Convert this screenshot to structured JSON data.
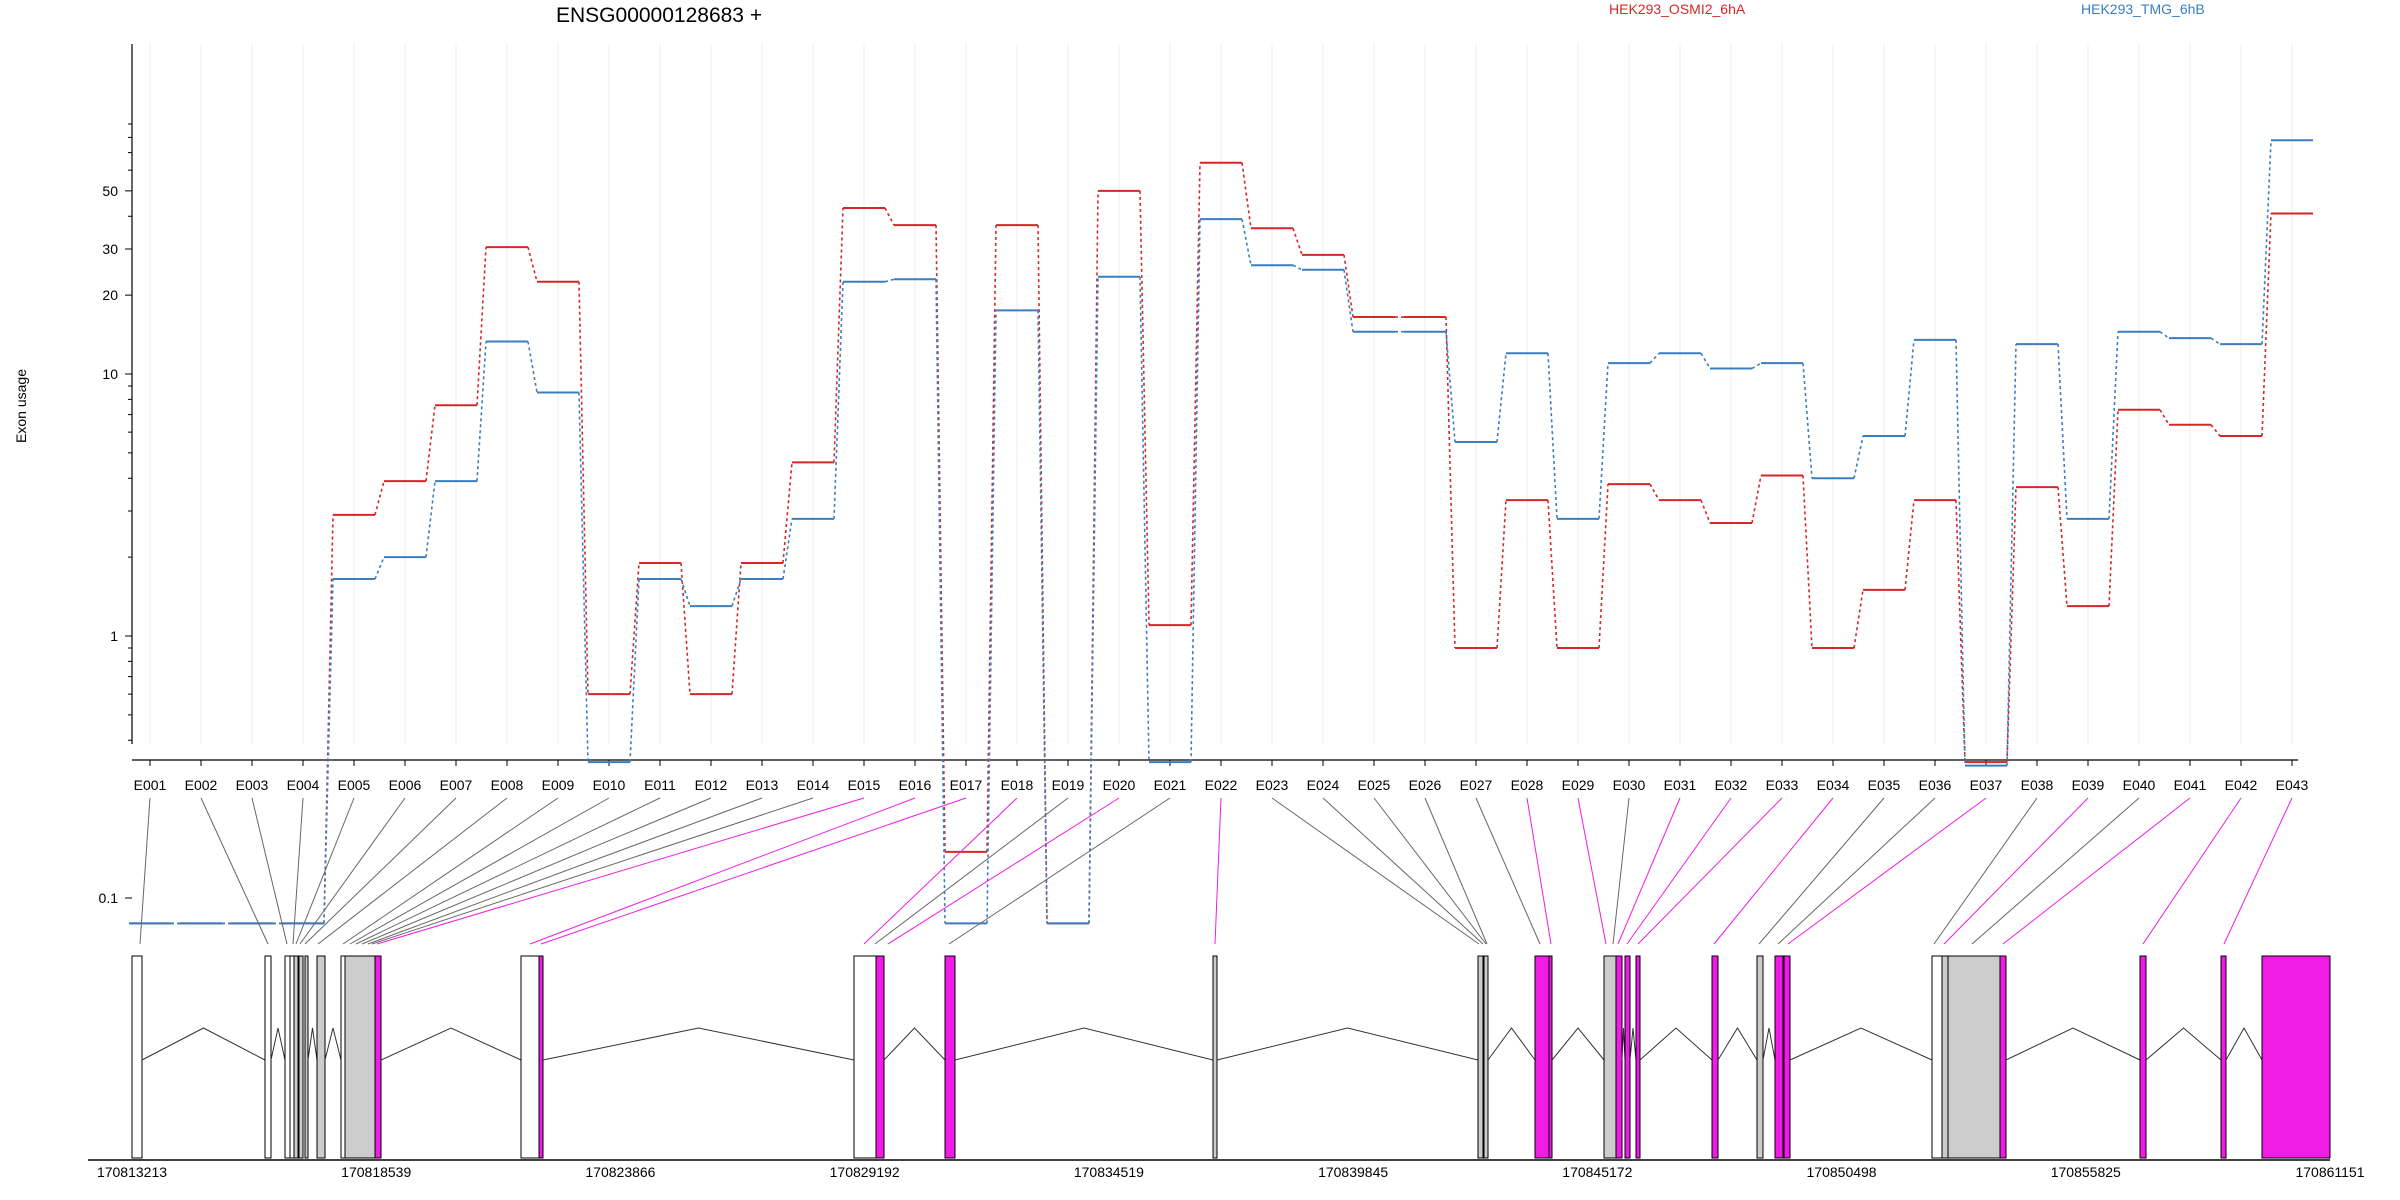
{
  "chart_data": {
    "type": "line",
    "title": "ENSG00000128683 +",
    "ylabel": "Exon usage",
    "y_scale": "log",
    "ylim": [
      0.08,
      100
    ],
    "yticks": [
      0.1,
      1,
      10,
      20,
      30,
      50
    ],
    "ytick_labels": [
      "0.1",
      "1",
      "10",
      "20",
      "30",
      "50"
    ],
    "grid": "vertical",
    "legend_position": "top",
    "categories": [
      "E001",
      "E002",
      "E003",
      "E004",
      "E005",
      "E006",
      "E007",
      "E008",
      "E009",
      "E010",
      "E011",
      "E012",
      "E013",
      "E014",
      "E015",
      "E016",
      "E017",
      "E018",
      "E019",
      "E020",
      "E021",
      "E022",
      "E023",
      "E024",
      "E025",
      "E026",
      "E027",
      "E028",
      "E029",
      "E030",
      "E031",
      "E032",
      "E033",
      "E034",
      "E035",
      "E036",
      "E037",
      "E038",
      "E039",
      "E040",
      "E041",
      "E042",
      "E043"
    ],
    "series": [
      {
        "name": "HEK293_OSMI2_6hA",
        "color": "#d62728",
        "values": [
          0.08,
          0.08,
          0.08,
          0.08,
          2.9,
          3.9,
          7.6,
          30.5,
          22.5,
          0.6,
          1.9,
          0.6,
          1.9,
          4.6,
          43,
          37,
          0.15,
          37,
          0.08,
          50,
          1.1,
          64,
          36,
          28.5,
          16.5,
          16.5,
          0.9,
          3.3,
          0.9,
          3.8,
          3.3,
          2.7,
          4.1,
          0.9,
          1.5,
          3.3,
          0.33,
          3.7,
          1.3,
          7.3,
          6.4,
          5.8,
          41
        ]
      },
      {
        "name": "HEK293_TMG_6hB",
        "color": "#3a7ebf",
        "values": [
          0.08,
          0.08,
          0.08,
          0.08,
          1.65,
          2.0,
          3.9,
          13.3,
          8.5,
          0.33,
          1.65,
          1.3,
          1.65,
          2.8,
          22.5,
          23,
          0.08,
          17.5,
          0.08,
          23.5,
          0.33,
          39,
          26,
          25,
          14.5,
          14.5,
          5.5,
          12,
          2.8,
          11,
          12,
          10.5,
          11,
          4,
          5.8,
          13.5,
          0.32,
          13,
          2.8,
          14.5,
          13.7,
          13,
          78
        ]
      }
    ],
    "gene_model": {
      "ticks": [
        "170813213",
        "170818539",
        "170823866",
        "170829192",
        "170834519",
        "170839845",
        "170845172",
        "170850498",
        "170855825",
        "170861151"
      ],
      "exon_colors": {
        "significant": "#f01ce6",
        "unused": "#ffffff",
        "overlap": "#cccccc"
      }
    }
  }
}
